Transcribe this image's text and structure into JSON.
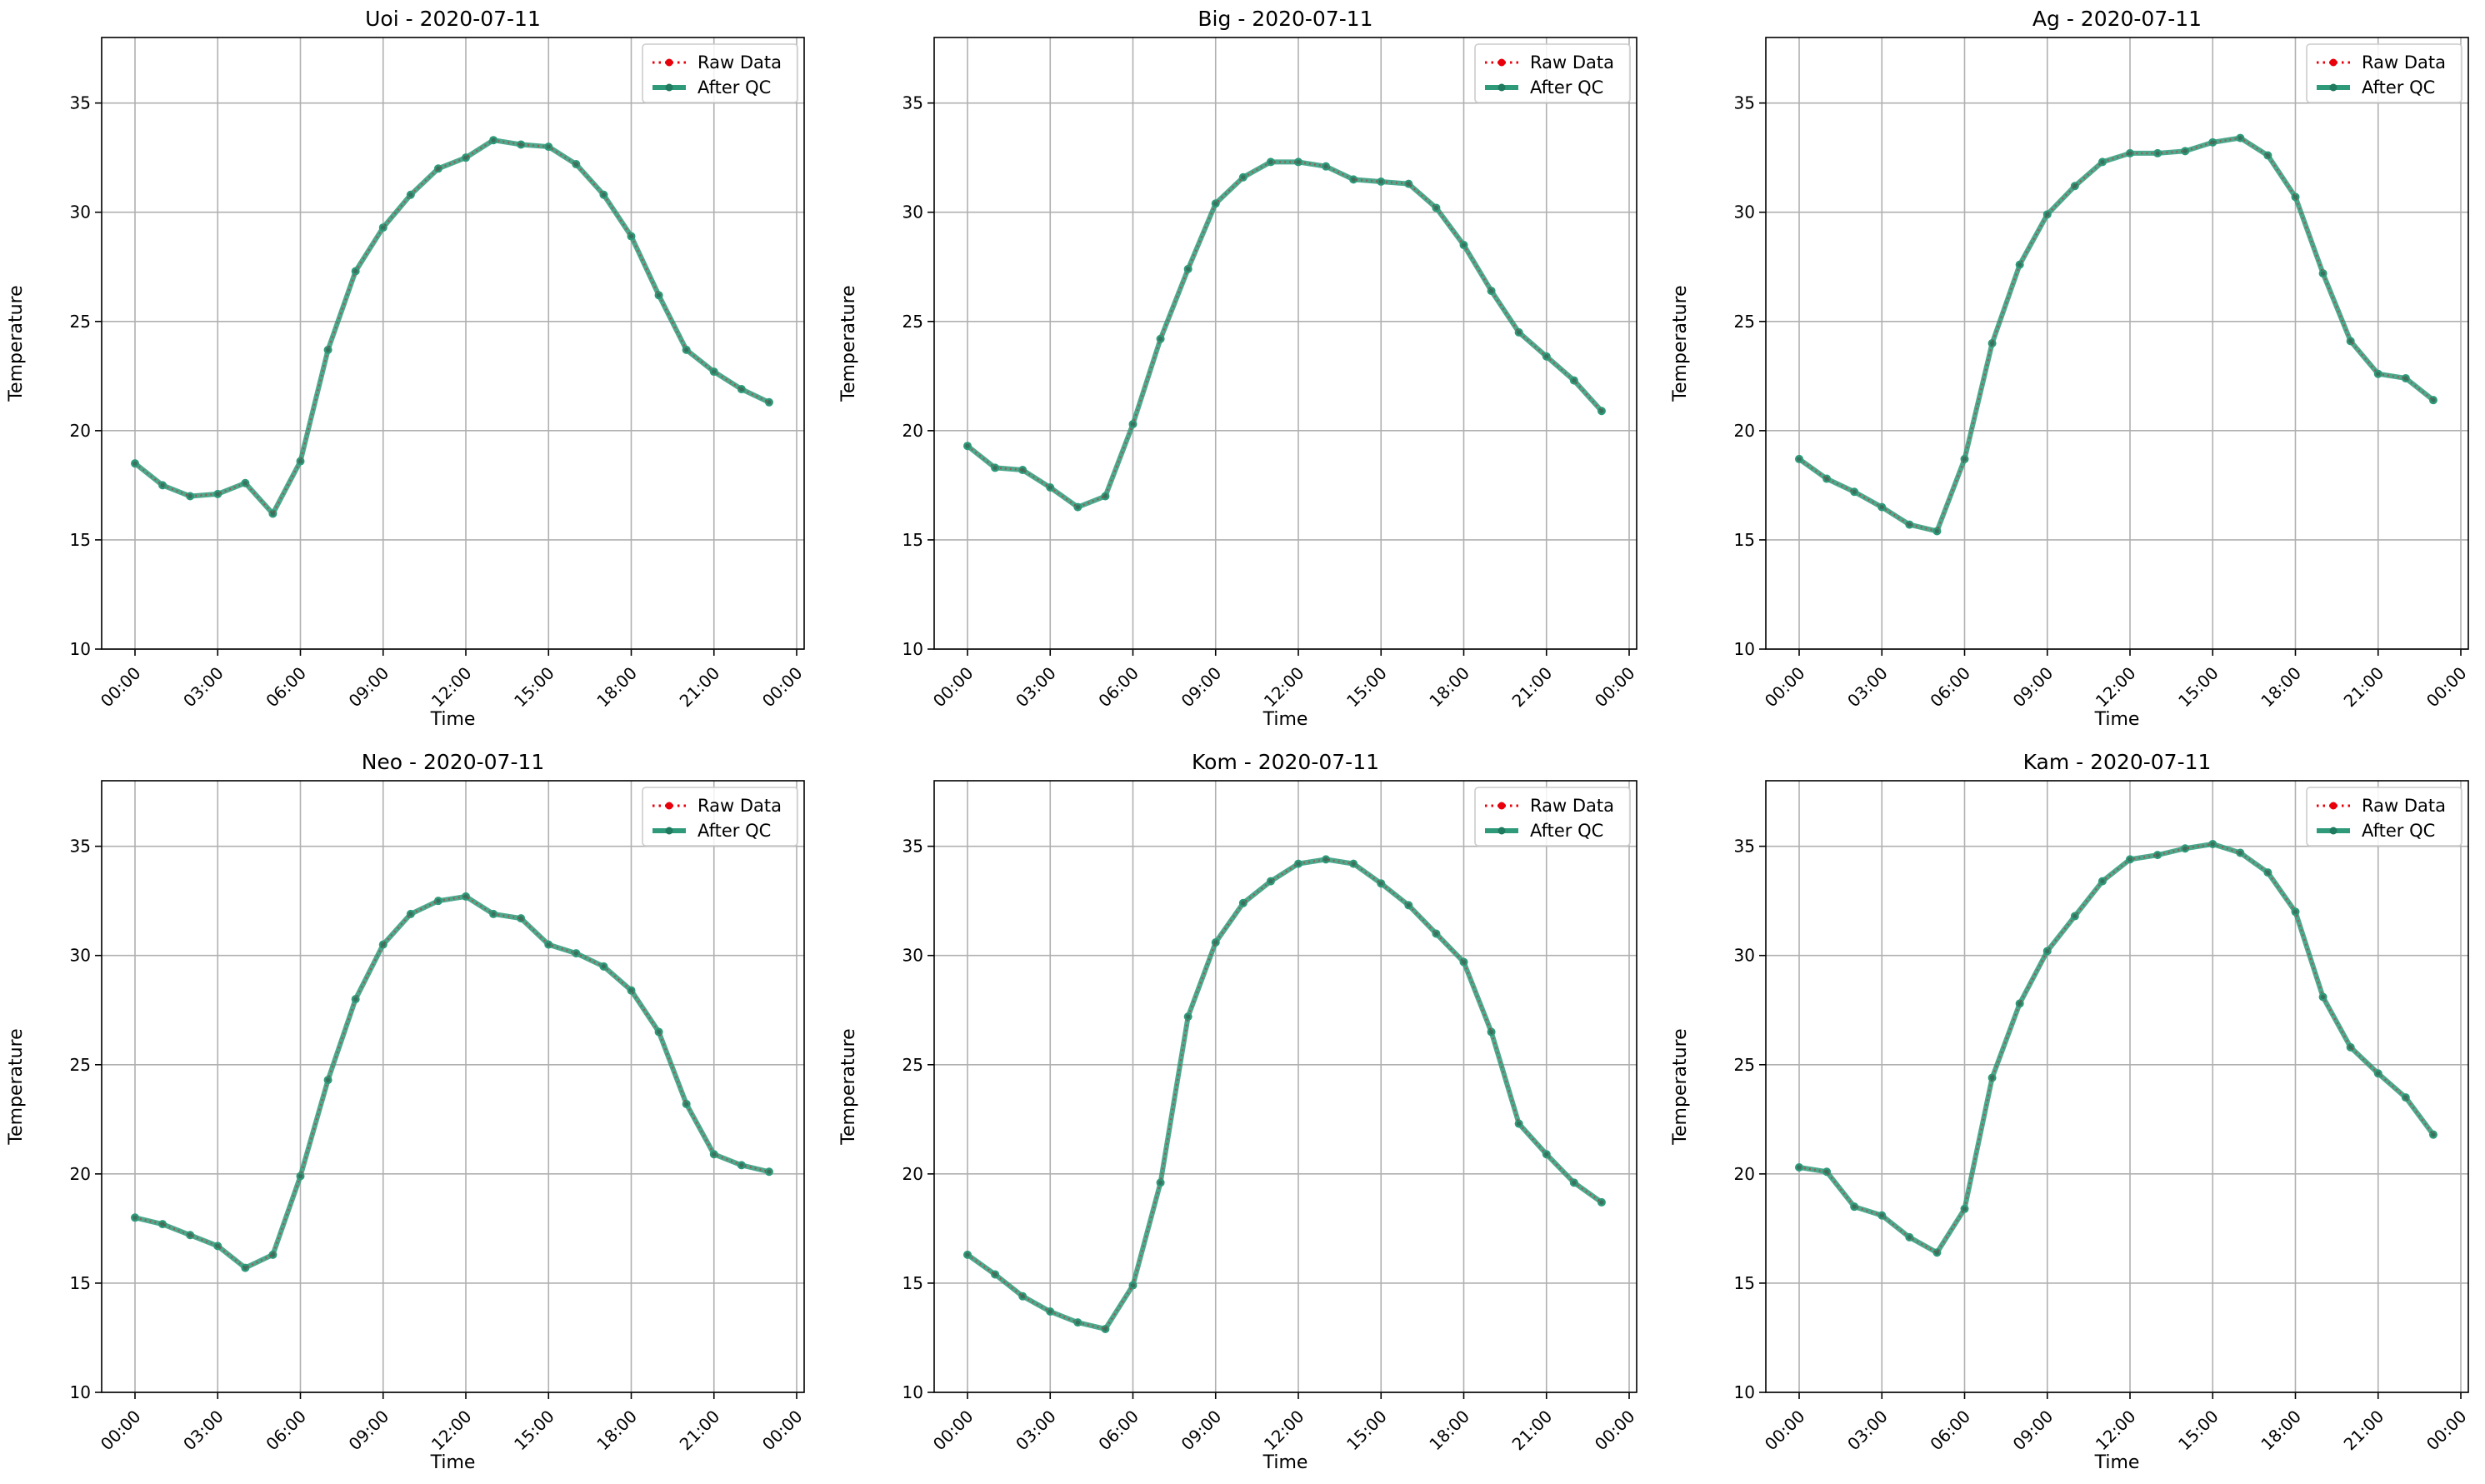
{
  "figure": {
    "legend": {
      "raw": "Raw Data",
      "qc": "After QC",
      "position": "upper right"
    },
    "colors": {
      "raw": "#e8000b",
      "qc": "#2e9a7a",
      "grid": "#b0b0b0",
      "axes": "#000000"
    }
  },
  "chart_data": [
    {
      "type": "line",
      "title": "Uoi - 2020-07-11",
      "xlabel": "Time",
      "ylabel": "Temperature",
      "x": [
        "00:00",
        "01:00",
        "02:00",
        "03:00",
        "04:00",
        "05:00",
        "06:00",
        "07:00",
        "08:00",
        "09:00",
        "10:00",
        "11:00",
        "12:00",
        "13:00",
        "14:00",
        "15:00",
        "16:00",
        "17:00",
        "18:00",
        "19:00",
        "20:00",
        "21:00",
        "22:00",
        "23:00"
      ],
      "x_ticks": [
        "00:00",
        "03:00",
        "06:00",
        "09:00",
        "12:00",
        "15:00",
        "18:00",
        "21:00",
        "00:00"
      ],
      "y_ticks": [
        10,
        15,
        20,
        25,
        30,
        35
      ],
      "ylim": [
        10,
        38
      ],
      "grid": true,
      "series": [
        {
          "name": "Raw Data",
          "values": [
            18.5,
            17.5,
            17.0,
            17.1,
            17.6,
            16.2,
            18.6,
            23.7,
            27.3,
            29.3,
            30.8,
            32.0,
            32.5,
            33.3,
            33.1,
            33.0,
            32.2,
            30.8,
            28.9,
            26.2,
            23.7,
            22.7,
            21.9,
            21.3
          ]
        },
        {
          "name": "After QC",
          "values": [
            18.5,
            17.5,
            17.0,
            17.1,
            17.6,
            16.2,
            18.6,
            23.7,
            27.3,
            29.3,
            30.8,
            32.0,
            32.5,
            33.3,
            33.1,
            33.0,
            32.2,
            30.8,
            28.9,
            26.2,
            23.7,
            22.7,
            21.9,
            21.3
          ]
        }
      ]
    },
    {
      "type": "line",
      "title": "Big - 2020-07-11",
      "xlabel": "Time",
      "ylabel": "Temperature",
      "x": [
        "00:00",
        "01:00",
        "02:00",
        "03:00",
        "04:00",
        "05:00",
        "06:00",
        "07:00",
        "08:00",
        "09:00",
        "10:00",
        "11:00",
        "12:00",
        "13:00",
        "14:00",
        "15:00",
        "16:00",
        "17:00",
        "18:00",
        "19:00",
        "20:00",
        "21:00",
        "22:00",
        "23:00"
      ],
      "x_ticks": [
        "00:00",
        "03:00",
        "06:00",
        "09:00",
        "12:00",
        "15:00",
        "18:00",
        "21:00",
        "00:00"
      ],
      "y_ticks": [
        10,
        15,
        20,
        25,
        30,
        35
      ],
      "ylim": [
        10,
        38
      ],
      "grid": true,
      "series": [
        {
          "name": "Raw Data",
          "values": [
            19.3,
            18.3,
            18.2,
            17.4,
            16.5,
            17.0,
            20.3,
            24.2,
            27.4,
            30.4,
            31.6,
            32.3,
            32.3,
            32.1,
            31.5,
            31.4,
            31.3,
            30.2,
            28.5,
            26.4,
            24.5,
            23.4,
            22.3,
            20.9
          ]
        },
        {
          "name": "After QC",
          "values": [
            19.3,
            18.3,
            18.2,
            17.4,
            16.5,
            17.0,
            20.3,
            24.2,
            27.4,
            30.4,
            31.6,
            32.3,
            32.3,
            32.1,
            31.5,
            31.4,
            31.3,
            30.2,
            28.5,
            26.4,
            24.5,
            23.4,
            22.3,
            20.9
          ]
        }
      ]
    },
    {
      "type": "line",
      "title": "Ag - 2020-07-11",
      "xlabel": "Time",
      "ylabel": "Temperature",
      "x": [
        "00:00",
        "01:00",
        "02:00",
        "03:00",
        "04:00",
        "05:00",
        "06:00",
        "07:00",
        "08:00",
        "09:00",
        "10:00",
        "11:00",
        "12:00",
        "13:00",
        "14:00",
        "15:00",
        "16:00",
        "17:00",
        "18:00",
        "19:00",
        "20:00",
        "21:00",
        "22:00",
        "23:00"
      ],
      "x_ticks": [
        "00:00",
        "03:00",
        "06:00",
        "09:00",
        "12:00",
        "15:00",
        "18:00",
        "21:00",
        "00:00"
      ],
      "y_ticks": [
        10,
        15,
        20,
        25,
        30,
        35
      ],
      "ylim": [
        10,
        38
      ],
      "grid": true,
      "series": [
        {
          "name": "Raw Data",
          "values": [
            18.7,
            17.8,
            17.2,
            16.5,
            15.7,
            15.4,
            18.7,
            24.0,
            27.6,
            29.9,
            31.2,
            32.3,
            32.7,
            32.7,
            32.8,
            33.2,
            33.4,
            32.6,
            30.7,
            27.2,
            24.1,
            22.6,
            22.4,
            21.4
          ]
        },
        {
          "name": "After QC",
          "values": [
            18.7,
            17.8,
            17.2,
            16.5,
            15.7,
            15.4,
            18.7,
            24.0,
            27.6,
            29.9,
            31.2,
            32.3,
            32.7,
            32.7,
            32.8,
            33.2,
            33.4,
            32.6,
            30.7,
            27.2,
            24.1,
            22.6,
            22.4,
            21.4
          ]
        }
      ]
    },
    {
      "type": "line",
      "title": "Neo - 2020-07-11",
      "xlabel": "Time",
      "ylabel": "Temperature",
      "x": [
        "00:00",
        "01:00",
        "02:00",
        "03:00",
        "04:00",
        "05:00",
        "06:00",
        "07:00",
        "08:00",
        "09:00",
        "10:00",
        "11:00",
        "12:00",
        "13:00",
        "14:00",
        "15:00",
        "16:00",
        "17:00",
        "18:00",
        "19:00",
        "20:00",
        "21:00",
        "22:00",
        "23:00"
      ],
      "x_ticks": [
        "00:00",
        "03:00",
        "06:00",
        "09:00",
        "12:00",
        "15:00",
        "18:00",
        "21:00",
        "00:00"
      ],
      "y_ticks": [
        10,
        15,
        20,
        25,
        30,
        35
      ],
      "ylim": [
        10,
        38
      ],
      "grid": true,
      "series": [
        {
          "name": "Raw Data",
          "values": [
            18.0,
            17.7,
            17.2,
            16.7,
            15.7,
            16.3,
            19.9,
            24.3,
            28.0,
            30.5,
            31.9,
            32.5,
            32.7,
            31.9,
            31.7,
            30.5,
            30.1,
            29.5,
            28.4,
            26.5,
            23.2,
            20.9,
            20.4,
            20.1
          ]
        },
        {
          "name": "After QC",
          "values": [
            18.0,
            17.7,
            17.2,
            16.7,
            15.7,
            16.3,
            19.9,
            24.3,
            28.0,
            30.5,
            31.9,
            32.5,
            32.7,
            31.9,
            31.7,
            30.5,
            30.1,
            29.5,
            28.4,
            26.5,
            23.2,
            20.9,
            20.4,
            20.1
          ]
        }
      ]
    },
    {
      "type": "line",
      "title": "Kom - 2020-07-11",
      "xlabel": "Time",
      "ylabel": "Temperature",
      "x": [
        "00:00",
        "01:00",
        "02:00",
        "03:00",
        "04:00",
        "05:00",
        "06:00",
        "07:00",
        "08:00",
        "09:00",
        "10:00",
        "11:00",
        "12:00",
        "13:00",
        "14:00",
        "15:00",
        "16:00",
        "17:00",
        "18:00",
        "19:00",
        "20:00",
        "21:00",
        "22:00",
        "23:00"
      ],
      "x_ticks": [
        "00:00",
        "03:00",
        "06:00",
        "09:00",
        "12:00",
        "15:00",
        "18:00",
        "21:00",
        "00:00"
      ],
      "y_ticks": [
        10,
        15,
        20,
        25,
        30,
        35
      ],
      "ylim": [
        10,
        38
      ],
      "grid": true,
      "series": [
        {
          "name": "Raw Data",
          "values": [
            16.3,
            15.4,
            14.4,
            13.7,
            13.2,
            12.9,
            14.9,
            19.6,
            27.2,
            30.6,
            32.4,
            33.4,
            34.2,
            34.4,
            34.2,
            33.3,
            32.3,
            31.0,
            29.7,
            26.5,
            22.3,
            20.9,
            19.6,
            18.7
          ]
        },
        {
          "name": "After QC",
          "values": [
            16.3,
            15.4,
            14.4,
            13.7,
            13.2,
            12.9,
            14.9,
            19.6,
            27.2,
            30.6,
            32.4,
            33.4,
            34.2,
            34.4,
            34.2,
            33.3,
            32.3,
            31.0,
            29.7,
            26.5,
            22.3,
            20.9,
            19.6,
            18.7
          ]
        }
      ]
    },
    {
      "type": "line",
      "title": "Kam - 2020-07-11",
      "xlabel": "Time",
      "ylabel": "Temperature",
      "x": [
        "00:00",
        "01:00",
        "02:00",
        "03:00",
        "04:00",
        "05:00",
        "06:00",
        "07:00",
        "08:00",
        "09:00",
        "10:00",
        "11:00",
        "12:00",
        "13:00",
        "14:00",
        "15:00",
        "16:00",
        "17:00",
        "18:00",
        "19:00",
        "20:00",
        "21:00",
        "22:00",
        "23:00"
      ],
      "x_ticks": [
        "00:00",
        "03:00",
        "06:00",
        "09:00",
        "12:00",
        "15:00",
        "18:00",
        "21:00",
        "00:00"
      ],
      "y_ticks": [
        10,
        15,
        20,
        25,
        30,
        35
      ],
      "ylim": [
        10,
        38
      ],
      "grid": true,
      "series": [
        {
          "name": "Raw Data",
          "values": [
            20.3,
            20.1,
            18.5,
            18.1,
            17.1,
            16.4,
            18.4,
            24.4,
            27.8,
            30.2,
            31.8,
            33.4,
            34.4,
            34.6,
            34.9,
            35.1,
            34.7,
            33.8,
            32.0,
            28.1,
            25.8,
            24.6,
            23.5,
            21.8
          ]
        },
        {
          "name": "After QC",
          "values": [
            20.3,
            20.1,
            18.5,
            18.1,
            17.1,
            16.4,
            18.4,
            24.4,
            27.8,
            30.2,
            31.8,
            33.4,
            34.4,
            34.6,
            34.9,
            35.1,
            34.7,
            33.8,
            32.0,
            28.1,
            25.8,
            24.6,
            23.5,
            21.8
          ]
        }
      ]
    }
  ]
}
